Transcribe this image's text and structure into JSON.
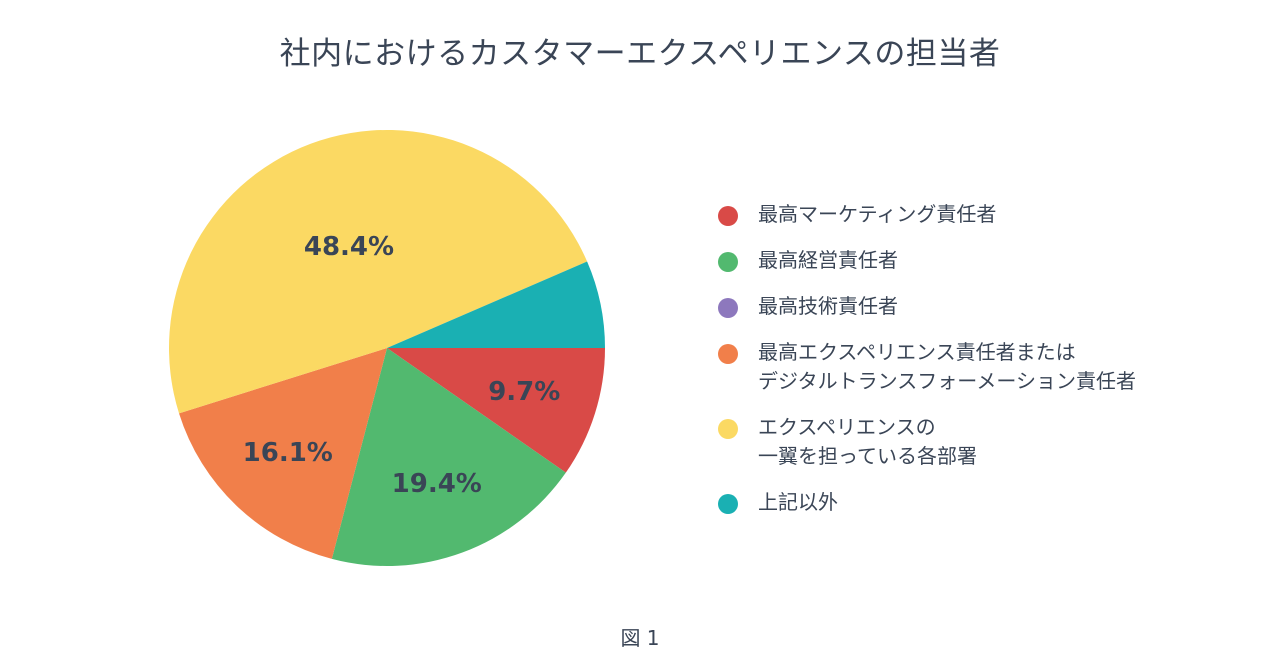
{
  "chart_data": {
    "type": "pie",
    "title": "社内におけるカスタマーエクスペリエンスの担当者",
    "caption": "図 1",
    "slices": [
      {
        "name": "最高マーケティング責任者",
        "lines": [
          "最高マーケティング責任者"
        ],
        "value": 9.7,
        "label": "9.7%",
        "color": "#d94a47"
      },
      {
        "name": "最高経営責任者",
        "lines": [
          "最高経営責任者"
        ],
        "value": 19.4,
        "label": "19.4%",
        "color": "#52b96f"
      },
      {
        "name": "最高技術責任者",
        "lines": [
          "最高技術責任者"
        ],
        "value": 0,
        "label": "",
        "color": "#8d78bd"
      },
      {
        "name": "最高エクスペリエンス責任者またはデジタルトランスフォーメーション責任者",
        "lines": [
          "最高エクスペリエンス責任者または",
          "デジタルトランスフォーメーション責任者"
        ],
        "value": 16.1,
        "label": "16.1%",
        "color": "#f17f4a"
      },
      {
        "name": "エクスペリエンスの一翼を担っている各部署",
        "lines": [
          "エクスペリエンスの",
          "一翼を担っている各部署"
        ],
        "value": 48.4,
        "label": "48.4%",
        "color": "#fbd963"
      },
      {
        "name": "上記以外",
        "lines": [
          "上記以外"
        ],
        "value": 6.5,
        "label": "",
        "color": "#1ab0b3"
      }
    ],
    "legend_position": "right"
  }
}
